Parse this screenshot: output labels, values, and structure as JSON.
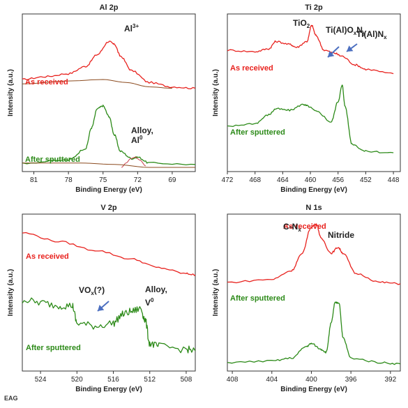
{
  "footer": "EAG",
  "colors": {
    "received": "#e8221e",
    "sputtered": "#2c8a18",
    "envelope": "#2c8a18",
    "background": "#8b4a1e",
    "arrow": "#4c6fc0",
    "olive": "#9a9a2a",
    "purple": "#7a4b9a",
    "redcomp": "#c8404a",
    "bluecomp": "#4a6fc8"
  },
  "chart_data": [
    {
      "type": "line",
      "title": "Al 2p",
      "xlabel": "Binding Energy (eV)",
      "ylabel": "Intensity (a.u.)",
      "xlim": [
        82,
        67
      ],
      "xticks": [
        81,
        78,
        75,
        72,
        69
      ],
      "reversed_x": true,
      "series": [
        {
          "name": "As received",
          "color": "#e8221e",
          "points": [
            [
              82,
              0.6
            ],
            [
              80,
              0.62
            ],
            [
              78,
              0.64
            ],
            [
              76.5,
              0.69
            ],
            [
              75.5,
              0.77
            ],
            [
              74.5,
              0.86
            ],
            [
              74,
              0.84
            ],
            [
              73.5,
              0.76
            ],
            [
              72.5,
              0.66
            ],
            [
              71,
              0.58
            ],
            [
              69,
              0.55
            ],
            [
              67,
              0.54
            ]
          ]
        },
        {
          "name": "As received background",
          "color": "#8b4a1e",
          "points": [
            [
              82,
              0.57
            ],
            [
              78,
              0.59
            ],
            [
              75,
              0.6
            ],
            [
              73,
              0.58
            ],
            [
              71,
              0.55
            ],
            [
              69,
              0.54
            ]
          ]
        },
        {
          "name": "After sputtered",
          "color": "#2c8a18",
          "points": [
            [
              82,
              0.03
            ],
            [
              78,
              0.05
            ],
            [
              76.5,
              0.13
            ],
            [
              76,
              0.27
            ],
            [
              75.5,
              0.4
            ],
            [
              75,
              0.42
            ],
            [
              74.5,
              0.35
            ],
            [
              74,
              0.22
            ],
            [
              73.5,
              0.11
            ],
            [
              72.5,
              0.06
            ],
            [
              72,
              0.07
            ],
            [
              71,
              0.03
            ],
            [
              67,
              0.02
            ]
          ]
        },
        {
          "name": "Alloy component",
          "color": "#c8404a",
          "points": [
            [
              73.4,
              0.0
            ],
            [
              73,
              0.03
            ],
            [
              72.6,
              0.06
            ],
            [
              72.2,
              0.07
            ],
            [
              71.8,
              0.05
            ],
            [
              71.3,
              0.01
            ]
          ]
        },
        {
          "name": "After sputtered background",
          "color": "#8b4a1e",
          "points": [
            [
              82,
              0.03
            ],
            [
              77,
              0.03
            ],
            [
              74,
              0.02
            ],
            [
              71,
              0.0
            ],
            [
              67,
              0.0
            ]
          ]
        }
      ],
      "labels": [
        {
          "text": "As received",
          "color": "#e8221e"
        },
        {
          "text": "After sputtered",
          "color": "#2c8a18"
        },
        {
          "text": "Al",
          "sup": "3+"
        },
        {
          "text": "Alloy,"
        },
        {
          "text": "Al",
          "sup": "0"
        }
      ]
    },
    {
      "type": "line",
      "title": "Ti 2p",
      "xlabel": "Binding Energy (eV)",
      "ylabel": "Intensity (a.u.)",
      "xlim": [
        472,
        447
      ],
      "xticks": [
        472,
        468,
        464,
        460,
        456,
        452,
        448
      ],
      "reversed_x": true,
      "series": [
        {
          "name": "As received",
          "color": "#e8221e",
          "points": [
            [
              472,
              0.8
            ],
            [
              468,
              0.79
            ],
            [
              466,
              0.81
            ],
            [
              465,
              0.86
            ],
            [
              463,
              0.84
            ],
            [
              462,
              0.82
            ],
            [
              460.5,
              0.86
            ],
            [
              459.8,
              0.97
            ],
            [
              459.2,
              0.9
            ],
            [
              458,
              0.8
            ],
            [
              456.5,
              0.78
            ],
            [
              455.5,
              0.76
            ],
            [
              453.5,
              0.7
            ],
            [
              452,
              0.67
            ],
            [
              448,
              0.64
            ]
          ]
        },
        {
          "name": "After sputtered",
          "color": "#2c8a18",
          "points": [
            [
              472,
              0.28
            ],
            [
              468,
              0.3
            ],
            [
              466,
              0.36
            ],
            [
              465,
              0.4
            ],
            [
              463,
              0.39
            ],
            [
              461,
              0.43
            ],
            [
              460.5,
              0.42
            ],
            [
              459,
              0.38
            ],
            [
              457,
              0.31
            ],
            [
              456,
              0.45
            ],
            [
              455.4,
              0.56
            ],
            [
              455,
              0.42
            ],
            [
              454,
              0.16
            ],
            [
              452,
              0.11
            ],
            [
              448,
              0.1
            ]
          ]
        }
      ],
      "labels": [
        {
          "text": "As received",
          "color": "#e8221e"
        },
        {
          "text": "After sputtered",
          "color": "#2c8a18"
        },
        {
          "text": "TiO",
          "sub": "2"
        },
        {
          "text": "Ti(Al)O",
          "parts": [
            "x",
            "N",
            "y"
          ]
        },
        {
          "text": "Ti(Al)N",
          "sub": "x"
        }
      ]
    },
    {
      "type": "line",
      "title": "V 2p",
      "xlabel": "Binding Energy (eV)",
      "ylabel": "Intensity (a.u.)",
      "xlim": [
        526,
        507
      ],
      "xticks": [
        524,
        520,
        516,
        512,
        508
      ],
      "reversed_x": true,
      "series": [
        {
          "name": "As received",
          "color": "#e8221e",
          "points": [
            [
              526,
              0.92
            ],
            [
              522,
              0.86
            ],
            [
              518,
              0.8
            ],
            [
              514,
              0.74
            ],
            [
              511,
              0.68
            ],
            [
              508,
              0.64
            ],
            [
              507,
              0.63
            ]
          ]
        },
        {
          "name": "After sputtered",
          "color": "#2c8a18",
          "points": [
            [
              526,
              0.46
            ],
            [
              524,
              0.44
            ],
            [
              522,
              0.42
            ],
            [
              520.5,
              0.42
            ],
            [
              520,
              0.3
            ],
            [
              518,
              0.28
            ],
            [
              516,
              0.3
            ],
            [
              515,
              0.36
            ],
            [
              514,
              0.38
            ],
            [
              513,
              0.4
            ],
            [
              512.5,
              0.32
            ],
            [
              512,
              0.16
            ],
            [
              511,
              0.14
            ],
            [
              508,
              0.12
            ],
            [
              507,
              0.11
            ]
          ]
        }
      ],
      "labels": [
        {
          "text": "As received",
          "color": "#e8221e"
        },
        {
          "text": "After sputtered",
          "color": "#2c8a18"
        },
        {
          "text": "VO",
          "parts": [
            "x",
            "(?)"
          ]
        },
        {
          "text": "Alloy,"
        },
        {
          "text": "V",
          "sup": "0"
        }
      ]
    },
    {
      "type": "line",
      "title": "N 1s",
      "xlabel": "Binding Energy (eV)",
      "ylabel": "Intensity (a.u.)",
      "xlim": [
        408.5,
        391
      ],
      "xticks": [
        408,
        404,
        400,
        396,
        392
      ],
      "reversed_x": true,
      "series": [
        {
          "name": "As received",
          "color": "#e8221e",
          "points": [
            [
              408.5,
              0.58
            ],
            [
              404,
              0.6
            ],
            [
              402,
              0.66
            ],
            [
              401,
              0.77
            ],
            [
              400,
              0.96
            ],
            [
              399.5,
              0.98
            ],
            [
              399,
              0.88
            ],
            [
              398,
              0.78
            ],
            [
              397.3,
              0.82
            ],
            [
              396.8,
              0.78
            ],
            [
              395.5,
              0.64
            ],
            [
              393,
              0.58
            ],
            [
              391,
              0.57
            ]
          ]
        },
        {
          "name": "After sputtered",
          "color": "#2c8a18",
          "points": [
            [
              408.5,
              0.03
            ],
            [
              404,
              0.04
            ],
            [
              402,
              0.06
            ],
            [
              400.5,
              0.14
            ],
            [
              400,
              0.16
            ],
            [
              399,
              0.12
            ],
            [
              398.5,
              0.1
            ],
            [
              398,
              0.3
            ],
            [
              397.6,
              0.44
            ],
            [
              397.2,
              0.44
            ],
            [
              396.8,
              0.2
            ],
            [
              396,
              0.06
            ],
            [
              393,
              0.03
            ],
            [
              391,
              0.02
            ]
          ]
        }
      ],
      "labels": [
        {
          "text": "As received",
          "color": "#e8221e"
        },
        {
          "text": "After sputtered",
          "color": "#2c8a18"
        },
        {
          "text": "C-N",
          "sub": "x"
        },
        {
          "text": "Nitride"
        }
      ]
    }
  ]
}
